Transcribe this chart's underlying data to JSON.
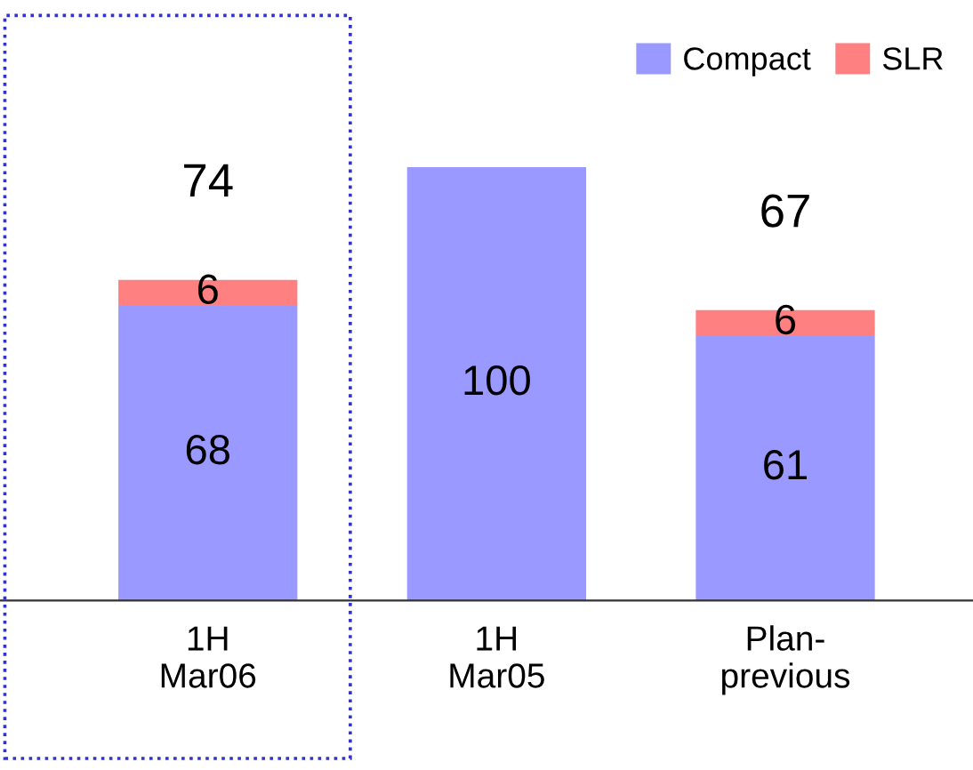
{
  "chart_data": {
    "type": "bar",
    "stacked": true,
    "data_labels": true,
    "legend": "top right",
    "categories": [
      "1H\nMar06",
      "1H\nMar05",
      "Plan-\nprevious"
    ],
    "series": [
      {
        "name": "Compact",
        "color": "#9999ff",
        "values": [
          68,
          100,
          61
        ]
      },
      {
        "name": "SLR",
        "color": "#ff8080",
        "values": [
          6,
          null,
          6
        ]
      }
    ],
    "totals": [
      "74",
      null,
      "67"
    ]
  }
}
